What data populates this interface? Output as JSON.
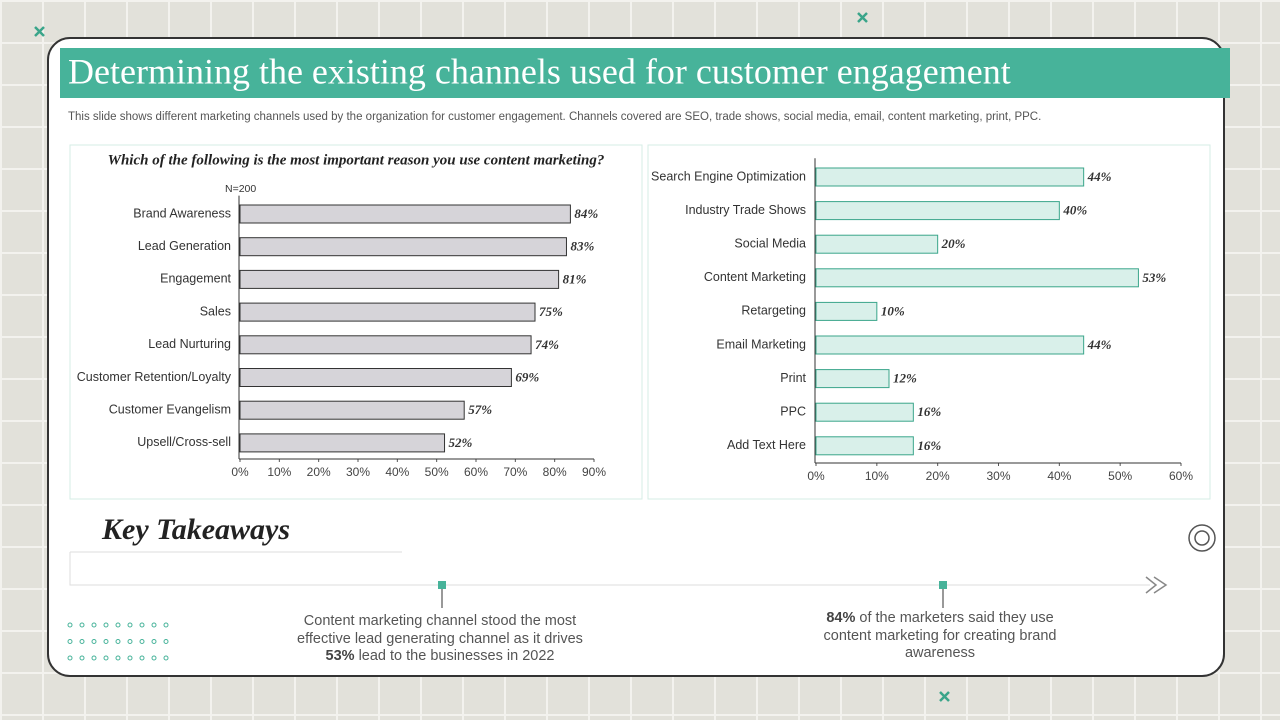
{
  "title": "Determining the existing channels used for customer engagement",
  "subtitle": "This slide shows different marketing channels used by the organization for customer engagement. Channels covered are SEO, trade shows, social media, email, content marketing, print, PPC.",
  "chart_data": [
    {
      "type": "hbar",
      "title": "Which of the following is the most important reason you use content marketing?",
      "note": "N=200",
      "categories": [
        "Brand Awareness",
        "Lead Generation",
        "Engagement",
        "Sales",
        "Lead Nurturing",
        "Customer Retention/Loyalty",
        "Customer Evangelism",
        "Upsell/Cross-sell"
      ],
      "values": [
        84,
        83,
        81,
        75,
        74,
        69,
        57,
        52
      ],
      "value_labels": [
        "84%",
        "83%",
        "81%",
        "75%",
        "74%",
        "69%",
        "57%",
        "52%"
      ],
      "color": "#d6d4d9",
      "edge_color": "#333333",
      "xlim": [
        0,
        90
      ],
      "xticks": [
        {
          "value": 0,
          "label": "0%"
        },
        {
          "value": 10,
          "label": "10%"
        },
        {
          "value": 20,
          "label": "20%"
        },
        {
          "value": 30,
          "label": "30%"
        },
        {
          "value": 40,
          "label": "40%"
        },
        {
          "value": 50,
          "label": "50%"
        },
        {
          "value": 60,
          "label": "60%"
        },
        {
          "value": 70,
          "label": "70%"
        },
        {
          "value": 80,
          "label": "80%"
        },
        {
          "value": 90,
          "label": "90%"
        }
      ]
    },
    {
      "type": "hbar",
      "categories": [
        "Search Engine Optimization",
        "Industry Trade Shows",
        "Social Media",
        "Content Marketing",
        "Retargeting",
        "Email Marketing",
        "Print",
        "PPC",
        "Add Text Here"
      ],
      "values": [
        44,
        40,
        20,
        53,
        10,
        44,
        12,
        16,
        16
      ],
      "value_labels": [
        "44%",
        "40%",
        "20%",
        "53%",
        "10%",
        "44%",
        "12%",
        "16%",
        "16%"
      ],
      "color": "#d9f0ea",
      "edge_color": "#3aa58a",
      "xlim": [
        0,
        60
      ],
      "xticks": [
        {
          "value": 0,
          "label": "0%"
        },
        {
          "value": 10,
          "label": "10%"
        },
        {
          "value": 20,
          "label": "20%"
        },
        {
          "value": 30,
          "label": "30%"
        },
        {
          "value": 40,
          "label": "40%"
        },
        {
          "value": 50,
          "label": "50%"
        },
        {
          "value": 60,
          "label": "60%"
        }
      ]
    }
  ],
  "takeaways": {
    "heading": "Key Takeaways",
    "items": [
      {
        "before": "Content marketing channel stood the most effective lead generating channel as it drives",
        "highlight": "53%",
        "after": "lead to the businesses in 2022"
      },
      {
        "before": "",
        "highlight": "84%",
        "after": "of the marketers said they use content marketing for creating brand awareness"
      }
    ]
  }
}
